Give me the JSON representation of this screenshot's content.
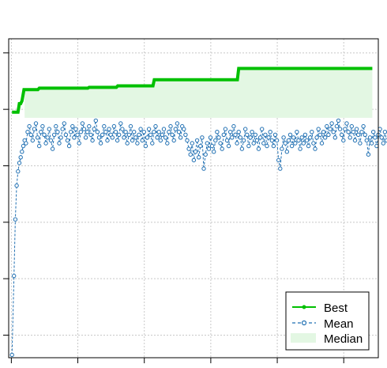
{
  "chart_data": {
    "type": "line",
    "title": "",
    "xlabel": "",
    "ylabel": "",
    "xlim": [
      -4,
      552
    ],
    "ylim": [
      -0.08,
      1.05
    ],
    "x_ticks": [
      0,
      100,
      200,
      300,
      400,
      500
    ],
    "y_ticks": [
      0.0,
      0.2,
      0.4,
      0.6,
      0.8,
      1.0
    ],
    "grid": true,
    "legend": {
      "position": "bottom-right",
      "entries": [
        "Best",
        "Mean",
        "Median"
      ]
    },
    "colors": {
      "best": "#00c000",
      "mean": "#1f6fb2",
      "median_band": "#e3f7e3",
      "grid": "#c8c8c8"
    },
    "series": [
      {
        "name": "Best",
        "kind": "step",
        "steps": [
          [
            1,
            0.79
          ],
          [
            10,
            0.79
          ],
          [
            12,
            0.82
          ],
          [
            14,
            0.82
          ],
          [
            16,
            0.83
          ],
          [
            19,
            0.87
          ],
          [
            40,
            0.87
          ],
          [
            42,
            0.875
          ],
          [
            115,
            0.875
          ],
          [
            117,
            0.878
          ],
          [
            158,
            0.878
          ],
          [
            160,
            0.883
          ],
          [
            213,
            0.883
          ],
          [
            215,
            0.905
          ],
          [
            340,
            0.905
          ],
          [
            342,
            0.945
          ],
          [
            543,
            0.945
          ]
        ]
      },
      {
        "name": "Mean",
        "kind": "line-with-points",
        "start": [
          [
            1,
            -0.07
          ],
          [
            4,
            0.21
          ],
          [
            6,
            0.41
          ],
          [
            8,
            0.53
          ],
          [
            10,
            0.58
          ],
          [
            12,
            0.61
          ],
          [
            14,
            0.63
          ],
          [
            16,
            0.65
          ],
          [
            18,
            0.67
          ],
          [
            20,
            0.69
          ]
        ],
        "start_x": 22,
        "step_x": 2.5,
        "values": [
          0.68,
          0.72,
          0.74,
          0.71,
          0.69,
          0.73,
          0.75,
          0.7,
          0.67,
          0.72,
          0.74,
          0.71,
          0.68,
          0.7,
          0.73,
          0.69,
          0.66,
          0.71,
          0.74,
          0.72,
          0.68,
          0.7,
          0.73,
          0.75,
          0.71,
          0.69,
          0.67,
          0.72,
          0.74,
          0.7,
          0.73,
          0.71,
          0.68,
          0.72,
          0.75,
          0.73,
          0.7,
          0.72,
          0.74,
          0.71,
          0.69,
          0.73,
          0.76,
          0.72,
          0.7,
          0.68,
          0.71,
          0.74,
          0.72,
          0.69,
          0.73,
          0.71,
          0.7,
          0.74,
          0.72,
          0.69,
          0.71,
          0.75,
          0.73,
          0.7,
          0.72,
          0.68,
          0.71,
          0.74,
          0.69,
          0.72,
          0.7,
          0.68,
          0.71,
          0.73,
          0.69,
          0.72,
          0.67,
          0.7,
          0.73,
          0.71,
          0.68,
          0.72,
          0.74,
          0.7,
          0.72,
          0.69,
          0.71,
          0.73,
          0.7,
          0.68,
          0.72,
          0.74,
          0.71,
          0.69,
          0.73,
          0.75,
          0.72,
          0.7,
          0.74,
          0.73,
          0.71,
          0.69,
          0.66,
          0.64,
          0.68,
          0.62,
          0.65,
          0.69,
          0.63,
          0.67,
          0.7,
          0.59,
          0.64,
          0.68,
          0.66,
          0.7,
          0.67,
          0.65,
          0.69,
          0.72,
          0.7,
          0.68,
          0.66,
          0.71,
          0.73,
          0.69,
          0.67,
          0.72,
          0.7,
          0.74,
          0.71,
          0.68,
          0.72,
          0.7,
          0.66,
          0.69,
          0.73,
          0.71,
          0.67,
          0.7,
          0.72,
          0.68,
          0.71,
          0.69,
          0.66,
          0.7,
          0.73,
          0.68,
          0.71,
          0.67,
          0.7,
          0.72,
          0.69,
          0.67,
          0.71,
          0.69,
          0.62,
          0.59,
          0.66,
          0.7,
          0.68,
          0.65,
          0.69,
          0.71,
          0.67,
          0.7,
          0.68,
          0.72,
          0.69,
          0.66,
          0.7,
          0.68,
          0.71,
          0.69,
          0.67,
          0.7,
          0.72,
          0.68,
          0.66,
          0.7,
          0.73,
          0.71,
          0.68,
          0.72,
          0.7,
          0.74,
          0.71,
          0.73,
          0.75,
          0.72,
          0.7,
          0.74,
          0.76,
          0.73,
          0.71,
          0.69,
          0.73,
          0.75,
          0.72,
          0.7,
          0.74,
          0.72,
          0.69,
          0.73,
          0.71,
          0.68,
          0.72,
          0.74,
          0.71,
          0.69,
          0.64,
          0.7,
          0.68,
          0.72,
          0.7,
          0.67,
          0.71,
          0.73,
          0.7,
          0.68,
          0.72,
          0.69
        ],
        "point_style": "open-circle",
        "line_style": "dashed"
      },
      {
        "name": "Median",
        "kind": "band",
        "upper": 0.945,
        "lower": 0.77,
        "x_range": [
          20,
          543
        ]
      }
    ]
  }
}
